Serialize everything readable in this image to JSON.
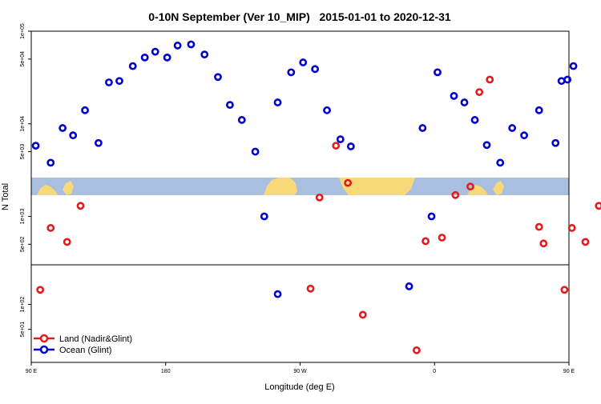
{
  "chart_data": {
    "type": "scatter",
    "title": "0-10N September (Ver 10_MIP)   2015-01-01 to 2020-12-31",
    "xlabel": "Longitude (deg E)",
    "ylabel": "N Total",
    "x_range": [
      90,
      450
    ],
    "y_log": true,
    "y_range_upper": [
      300,
      100000
    ],
    "y_range_lower": [
      20,
      300
    ],
    "x_ticks": [
      {
        "x": 90,
        "label": "90 E"
      },
      {
        "x": 180,
        "label": "180"
      },
      {
        "x": 270,
        "label": "90 W"
      },
      {
        "x": 360,
        "label": "0"
      },
      {
        "x": 450,
        "label": "90 E"
      },
      {
        "x": 540,
        "label": "180"
      }
    ],
    "x_ticks_note": "axis spans 90E eastward across 180, 90W, 0 back to 90E and on to 180",
    "y_ticks_upper": [
      {
        "y": 500,
        "label": "5e+02"
      },
      {
        "y": 1000,
        "label": "1e+03"
      },
      {
        "y": 5000,
        "label": "5e+03"
      },
      {
        "y": 10000,
        "label": "1e+04"
      },
      {
        "y": 50000,
        "label": "5e+04"
      },
      {
        "y": 100000,
        "label": "1e+05"
      }
    ],
    "y_ticks_lower": [
      {
        "y": 50,
        "label": "5e+01"
      },
      {
        "y": 100,
        "label": "1e+02"
      }
    ],
    "legend": {
      "placement": "bottom-left"
    },
    "grid": false,
    "series": [
      {
        "name": "Land (Nadir&Glint)",
        "color": "#e41a1c",
        "points": [
          {
            "x": 96,
            "y": 150,
            "panel": "lower"
          },
          {
            "x": 103,
            "y": 750,
            "panel": "upper"
          },
          {
            "x": 114,
            "y": 530,
            "panel": "upper"
          },
          {
            "x": 123,
            "y": 1300,
            "panel": "upper"
          },
          {
            "x": 277,
            "y": 155,
            "panel": "lower"
          },
          {
            "x": 283,
            "y": 1600,
            "panel": "upper"
          },
          {
            "x": 294,
            "y": 5800,
            "panel": "upper"
          },
          {
            "x": 302,
            "y": 2300,
            "panel": "upper"
          },
          {
            "x": 312,
            "y": 75,
            "panel": "lower"
          },
          {
            "x": 348,
            "y": 28,
            "panel": "lower"
          },
          {
            "x": 354,
            "y": 540,
            "panel": "upper"
          },
          {
            "x": 365,
            "y": 590,
            "panel": "upper"
          },
          {
            "x": 374,
            "y": 1700,
            "panel": "upper"
          },
          {
            "x": 384,
            "y": 2100,
            "panel": "upper"
          },
          {
            "x": 390,
            "y": 22000,
            "panel": "upper"
          },
          {
            "x": 397,
            "y": 30000,
            "panel": "upper"
          },
          {
            "x": 430,
            "y": 770,
            "panel": "upper"
          },
          {
            "x": 433,
            "y": 510,
            "panel": "upper"
          },
          {
            "x": 447,
            "y": 150,
            "panel": "lower"
          },
          {
            "x": 452,
            "y": 750,
            "panel": "upper"
          },
          {
            "x": 461,
            "y": 530,
            "panel": "upper"
          },
          {
            "x": 470,
            "y": 1300,
            "panel": "upper"
          }
        ]
      },
      {
        "name": "Ocean (Glint)",
        "color": "#0000cc",
        "points": [
          {
            "x": 93,
            "y": 5800,
            "panel": "upper"
          },
          {
            "x": 103,
            "y": 3800,
            "panel": "upper"
          },
          {
            "x": 111,
            "y": 9000,
            "panel": "upper"
          },
          {
            "x": 118,
            "y": 7500,
            "panel": "upper"
          },
          {
            "x": 126,
            "y": 14000,
            "panel": "upper"
          },
          {
            "x": 135,
            "y": 6200,
            "panel": "upper"
          },
          {
            "x": 142,
            "y": 28000,
            "panel": "upper"
          },
          {
            "x": 149,
            "y": 29000,
            "panel": "upper"
          },
          {
            "x": 158,
            "y": 42000,
            "panel": "upper"
          },
          {
            "x": 166,
            "y": 52000,
            "panel": "upper"
          },
          {
            "x": 173,
            "y": 60000,
            "panel": "upper"
          },
          {
            "x": 181,
            "y": 52000,
            "panel": "upper"
          },
          {
            "x": 188,
            "y": 70000,
            "panel": "upper"
          },
          {
            "x": 197,
            "y": 72000,
            "panel": "upper"
          },
          {
            "x": 206,
            "y": 56000,
            "panel": "upper"
          },
          {
            "x": 215,
            "y": 32000,
            "panel": "upper"
          },
          {
            "x": 223,
            "y": 16000,
            "panel": "upper"
          },
          {
            "x": 231,
            "y": 11000,
            "panel": "upper"
          },
          {
            "x": 240,
            "y": 5000,
            "panel": "upper"
          },
          {
            "x": 246,
            "y": 1000,
            "panel": "upper"
          },
          {
            "x": 255,
            "y": 133,
            "panel": "lower"
          },
          {
            "x": 255,
            "y": 17000,
            "panel": "upper"
          },
          {
            "x": 264,
            "y": 36000,
            "panel": "upper"
          },
          {
            "x": 272,
            "y": 46000,
            "panel": "upper"
          },
          {
            "x": 280,
            "y": 39000,
            "panel": "upper"
          },
          {
            "x": 288,
            "y": 14000,
            "panel": "upper"
          },
          {
            "x": 297,
            "y": 6800,
            "panel": "upper"
          },
          {
            "x": 304,
            "y": 5700,
            "panel": "upper"
          },
          {
            "x": 343,
            "y": 165,
            "panel": "lower"
          },
          {
            "x": 352,
            "y": 9000,
            "panel": "upper"
          },
          {
            "x": 358,
            "y": 1000,
            "panel": "upper"
          },
          {
            "x": 362,
            "y": 36000,
            "panel": "upper"
          },
          {
            "x": 373,
            "y": 20000,
            "panel": "upper"
          },
          {
            "x": 380,
            "y": 17000,
            "panel": "upper"
          },
          {
            "x": 387,
            "y": 11000,
            "panel": "upper"
          },
          {
            "x": 395,
            "y": 5900,
            "panel": "upper"
          },
          {
            "x": 404,
            "y": 3800,
            "panel": "upper"
          },
          {
            "x": 412,
            "y": 9000,
            "panel": "upper"
          },
          {
            "x": 420,
            "y": 7500,
            "panel": "upper"
          },
          {
            "x": 430,
            "y": 14000,
            "panel": "upper"
          },
          {
            "x": 441,
            "y": 6200,
            "panel": "upper"
          },
          {
            "x": 445,
            "y": 29000,
            "panel": "upper"
          },
          {
            "x": 449,
            "y": 30000,
            "panel": "upper"
          },
          {
            "x": 453,
            "y": 42000,
            "panel": "upper"
          }
        ]
      }
    ]
  }
}
